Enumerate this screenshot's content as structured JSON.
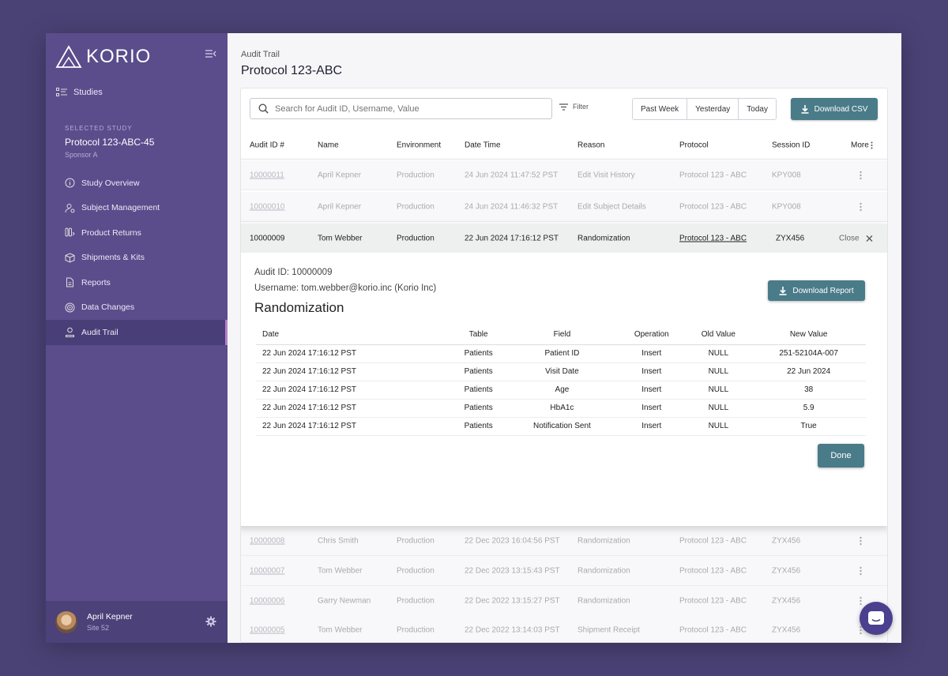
{
  "brand": {
    "name": "KORIO"
  },
  "sidebar": {
    "studies_label": "Studies",
    "selected_study": {
      "caption": "SELECTED STUDY",
      "title": "Protocol 123-ABC-45",
      "sponsor": "Sponsor A"
    },
    "items": [
      {
        "label": "Study Overview",
        "icon": "info-circle-icon"
      },
      {
        "label": "Subject Management",
        "icon": "user-gear-icon"
      },
      {
        "label": "Product Returns",
        "icon": "vials-icon"
      },
      {
        "label": "Shipments & Kits",
        "icon": "box-icon"
      },
      {
        "label": "Reports",
        "icon": "document-icon"
      },
      {
        "label": "Data Changes",
        "icon": "target-icon"
      },
      {
        "label": "Audit Trail",
        "icon": "user-audit-icon",
        "active": true
      }
    ],
    "user": {
      "name": "April Kepner",
      "site": "Site 52"
    }
  },
  "header": {
    "breadcrumb": "Audit Trail",
    "title": "Protocol 123-ABC"
  },
  "toolbar": {
    "search_placeholder": "Search for Audit ID, Username, Value",
    "filter_label": "Filter",
    "ranges": [
      "Past Week",
      "Yesterday",
      "Today"
    ],
    "download_csv_label": "Download CSV"
  },
  "table": {
    "columns": [
      "Audit ID #",
      "Name",
      "Environment",
      "Date Time",
      "Reason",
      "Protocol",
      "Session ID",
      "More"
    ],
    "rows_above": [
      {
        "id": "10000011",
        "name": "April Kepner",
        "env": "Production",
        "date": "24 Jun 2024 11:47:52 PST",
        "reason": "Edit Visit History",
        "protocol": "Protocol 123 - ABC",
        "session": "KPY008"
      },
      {
        "id": "10000010",
        "name": "April Kepner",
        "env": "Production",
        "date": "24 Jun 2024 11:46:32 PST",
        "reason": "Edit Subject Details",
        "protocol": "Protocol 123 - ABC",
        "session": "KPY008"
      }
    ],
    "expanded": {
      "id": "10000009",
      "name": "Tom Webber",
      "env": "Production",
      "date": "22 Jun 2024 17:16:12 PST",
      "reason": "Randomization",
      "protocol": "Protocol 123 - ABC",
      "session": "ZYX456",
      "close_label": "Close",
      "audit_id_line": "Audit ID: 10000009",
      "username_line": "Username: tom.webber@korio.inc (Korio Inc)",
      "title": "Randomization",
      "download_report_label": "Download Report",
      "done_label": "Done",
      "detail_columns": [
        "Date",
        "Table",
        "Field",
        "Operation",
        "Old Value",
        "New Value"
      ],
      "detail_rows": [
        [
          "22 Jun 2024 17:16:12 PST",
          "Patients",
          "Patient ID",
          "Insert",
          "NULL",
          "251-52104A-007"
        ],
        [
          "22 Jun 2024 17:16:12 PST",
          "Patients",
          "Visit Date",
          "Insert",
          "NULL",
          "22 Jun 2024"
        ],
        [
          "22 Jun 2024 17:16:12 PST",
          "Patients",
          "Age",
          "Insert",
          "NULL",
          "38"
        ],
        [
          "22 Jun 2024 17:16:12 PST",
          "Patients",
          "HbA1c",
          "Insert",
          "NULL",
          "5.9"
        ],
        [
          "22 Jun 2024 17:16:12 PST",
          "Patients",
          "Notification Sent",
          "Insert",
          "NULL",
          "True"
        ]
      ]
    },
    "rows_below": [
      {
        "id": "10000008",
        "name": "Chris Smith",
        "env": "Production",
        "date": "22 Dec 2023 16:04:56 PST",
        "reason": "Randomization",
        "protocol": "Protocol 123 - ABC",
        "session": "ZYX456"
      },
      {
        "id": "10000007",
        "name": "Tom Webber",
        "env": "Production",
        "date": "22 Dec 2023 13:15:43 PST",
        "reason": "Randomization",
        "protocol": "Protocol 123 - ABC",
        "session": "ZYX456"
      },
      {
        "id": "10000006",
        "name": "Garry Newman",
        "env": "Production",
        "date": "22 Dec 2022 13:15:27 PST",
        "reason": "Randomization",
        "protocol": "Protocol 123 - ABC",
        "session": "ZYX456"
      },
      {
        "id": "10000005",
        "name": "Tom Webber",
        "env": "Production",
        "date": "22 Dec 2022 13:14:03 PST",
        "reason": "Shipment Receipt",
        "protocol": "Protocol 123 - ABC",
        "session": "ZYX456"
      }
    ]
  },
  "colors": {
    "sidebar": "#5b4d8c",
    "accent_button": "#4a7b88",
    "highlight_bar": "#a66db8",
    "page_bg": "#4a4275"
  }
}
